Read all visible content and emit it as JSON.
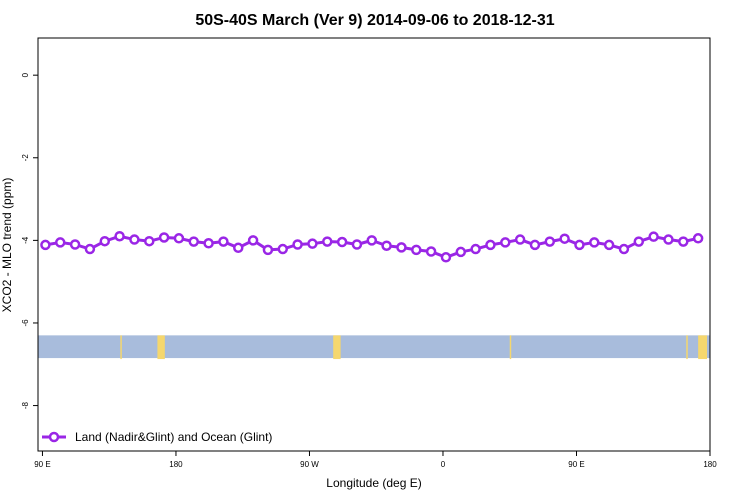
{
  "chart_data": {
    "type": "line",
    "title": "50S-40S March (Ver 9)   2014-09-06 to 2018-12-31",
    "xlabel": "Longitude (deg E)",
    "ylabel": "XCO2 - MLO trend (ppm)",
    "x_ticks": [
      {
        "value": 90,
        "label": "90 E"
      },
      {
        "value": 180,
        "label": "180"
      },
      {
        "value": 270,
        "label": "90 W"
      },
      {
        "value": 360,
        "label": "0"
      },
      {
        "value": 450,
        "label": "90 E"
      },
      {
        "value": 540,
        "label": "180"
      }
    ],
    "y_ticks": [
      {
        "value": 0,
        "label": "0"
      },
      {
        "value": -2,
        "label": "-2"
      },
      {
        "value": -4,
        "label": "-4"
      },
      {
        "value": -6,
        "label": "-6"
      },
      {
        "value": -8,
        "label": "-8"
      }
    ],
    "xlim": [
      87,
      540
    ],
    "ylim": [
      -9.1,
      0.9
    ],
    "grid": false,
    "legend_position": "bottom-left",
    "colors": {
      "series": "#9a26e6",
      "ocean_band": "#a8bcdc",
      "land": "#f5d76e"
    },
    "series": [
      {
        "name": "Land (Nadir&Glint) and Ocean (Glint)",
        "x": [
          92,
          102,
          112,
          122,
          132,
          142,
          152,
          162,
          172,
          182,
          192,
          202,
          212,
          222,
          232,
          242,
          252,
          262,
          272,
          282,
          292,
          302,
          312,
          322,
          332,
          342,
          352,
          362,
          372,
          382,
          392,
          402,
          412,
          422,
          432,
          442,
          452,
          462,
          472,
          482,
          492,
          502,
          512,
          522,
          532
        ],
        "y": [
          -4.11,
          -4.05,
          -4.1,
          -4.21,
          -4.02,
          -3.9,
          -3.98,
          -4.02,
          -3.93,
          -3.95,
          -4.03,
          -4.07,
          -4.03,
          -4.18,
          -4.0,
          -4.23,
          -4.21,
          -4.1,
          -4.08,
          -4.03,
          -4.04,
          -4.1,
          -4.0,
          -4.13,
          -4.17,
          -4.23,
          -4.27,
          -4.41,
          -4.28,
          -4.21,
          -4.11,
          -4.05,
          -3.98,
          -4.11,
          -4.03,
          -3.96,
          -4.11,
          -4.05,
          -4.11,
          -4.21,
          -4.03,
          -3.91,
          -3.98,
          -4.03,
          -3.95
        ]
      }
    ],
    "background_band": {
      "y_top": -6.3,
      "y_bottom": -6.85,
      "label": "ocean"
    },
    "land_patches_x": [
      [
        142.5,
        143.5
      ],
      [
        167.5,
        172.5
      ],
      [
        286,
        291
      ],
      [
        405,
        406
      ],
      [
        524,
        525
      ],
      [
        532,
        538
      ]
    ]
  }
}
